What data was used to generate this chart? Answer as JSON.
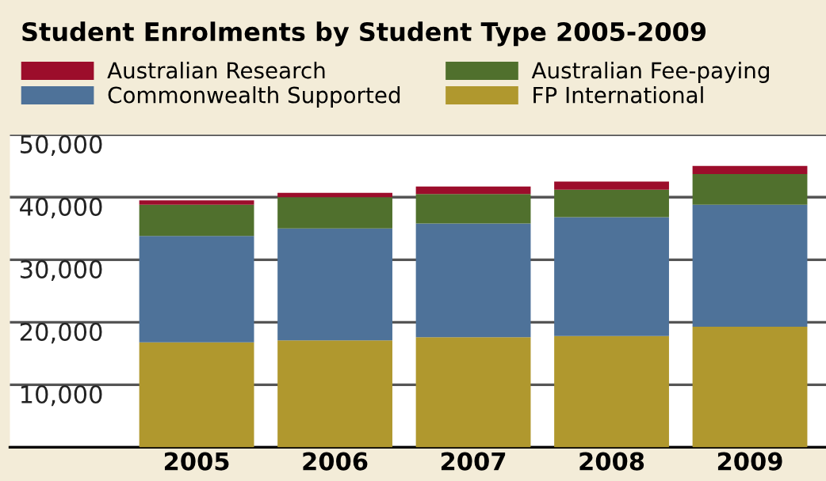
{
  "chart_data": {
    "type": "bar",
    "title": "Student Enrolments by Student Type 2005-2009",
    "stacked": true,
    "categories": [
      "2005",
      "2006",
      "2007",
      "2008",
      "2009"
    ],
    "series": [
      {
        "name": "FP International",
        "color": "#b0982e",
        "values": [
          16800,
          17100,
          17600,
          17800,
          19300
        ]
      },
      {
        "name": "Commonwealth Supported",
        "color": "#4e7299",
        "values": [
          17000,
          17900,
          18200,
          19000,
          19500
        ]
      },
      {
        "name": "Australian Fee-paying",
        "color": "#50702d",
        "values": [
          5000,
          5000,
          4700,
          4400,
          4900
        ]
      },
      {
        "name": "Australian Research",
        "color": "#9c0d2b",
        "values": [
          700,
          700,
          1200,
          1300,
          1300
        ]
      }
    ],
    "ylim": [
      0,
      50000
    ],
    "yticks": [
      {
        "value": 0,
        "label": null
      },
      {
        "value": 10000,
        "label": "10,000"
      },
      {
        "value": 20000,
        "label": "20,000"
      },
      {
        "value": 30000,
        "label": "30,000"
      },
      {
        "value": 40000,
        "label": "40,000"
      },
      {
        "value": 50000,
        "label": "50,000"
      }
    ],
    "grid": "y",
    "legend": "top"
  }
}
